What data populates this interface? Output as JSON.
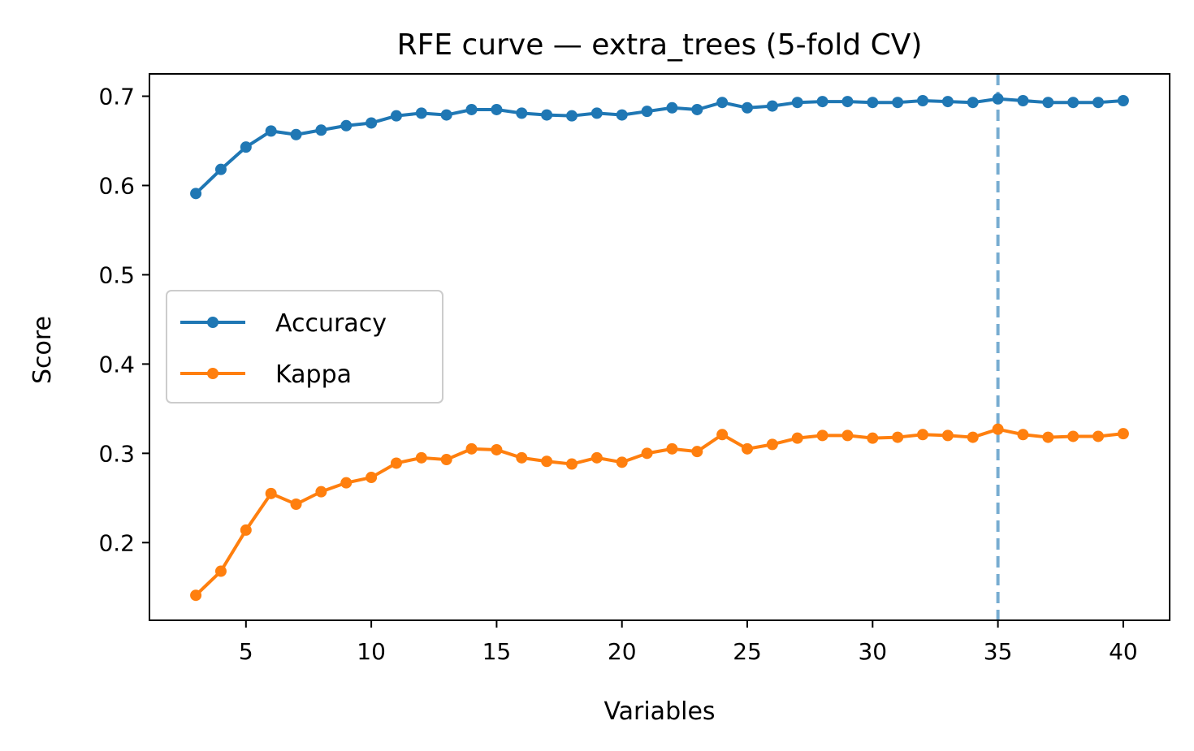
{
  "chart_data": {
    "type": "line",
    "title": "RFE curve — extra_trees (5-fold CV)",
    "xlabel": "Variables",
    "ylabel": "Score",
    "xlim": [
      1.15,
      41.85
    ],
    "ylim": [
      0.113,
      0.725
    ],
    "xticks": [
      5,
      10,
      15,
      20,
      25,
      30,
      35,
      40
    ],
    "yticks": [
      0.2,
      0.3,
      0.4,
      0.5,
      0.6,
      0.7
    ],
    "grid": false,
    "legend": "center-left",
    "x": [
      3,
      4,
      5,
      6,
      7,
      8,
      9,
      10,
      11,
      12,
      13,
      14,
      15,
      16,
      17,
      18,
      19,
      20,
      21,
      22,
      23,
      24,
      25,
      26,
      27,
      28,
      29,
      30,
      31,
      32,
      33,
      34,
      35,
      36,
      37,
      38,
      39,
      40
    ],
    "series": [
      {
        "name": "Accuracy",
        "color": "#1f77b4",
        "values": [
          0.591,
          0.618,
          0.643,
          0.661,
          0.657,
          0.662,
          0.667,
          0.67,
          0.678,
          0.681,
          0.679,
          0.685,
          0.685,
          0.681,
          0.679,
          0.678,
          0.681,
          0.679,
          0.683,
          0.687,
          0.685,
          0.693,
          0.687,
          0.689,
          0.693,
          0.694,
          0.694,
          0.693,
          0.693,
          0.695,
          0.694,
          0.693,
          0.697,
          0.695,
          0.693,
          0.693,
          0.693,
          0.695
        ]
      },
      {
        "name": "Kappa",
        "color": "#ff7f0e",
        "values": [
          0.141,
          0.168,
          0.214,
          0.255,
          0.243,
          0.257,
          0.267,
          0.273,
          0.289,
          0.295,
          0.293,
          0.305,
          0.304,
          0.295,
          0.291,
          0.288,
          0.295,
          0.29,
          0.3,
          0.305,
          0.302,
          0.321,
          0.305,
          0.31,
          0.317,
          0.32,
          0.32,
          0.317,
          0.318,
          0.321,
          0.32,
          0.318,
          0.327,
          0.321,
          0.318,
          0.319,
          0.319,
          0.322
        ]
      }
    ],
    "annotations": [
      {
        "type": "vline",
        "x": 35,
        "style": "dashed",
        "color": "#1f77b4"
      }
    ]
  }
}
